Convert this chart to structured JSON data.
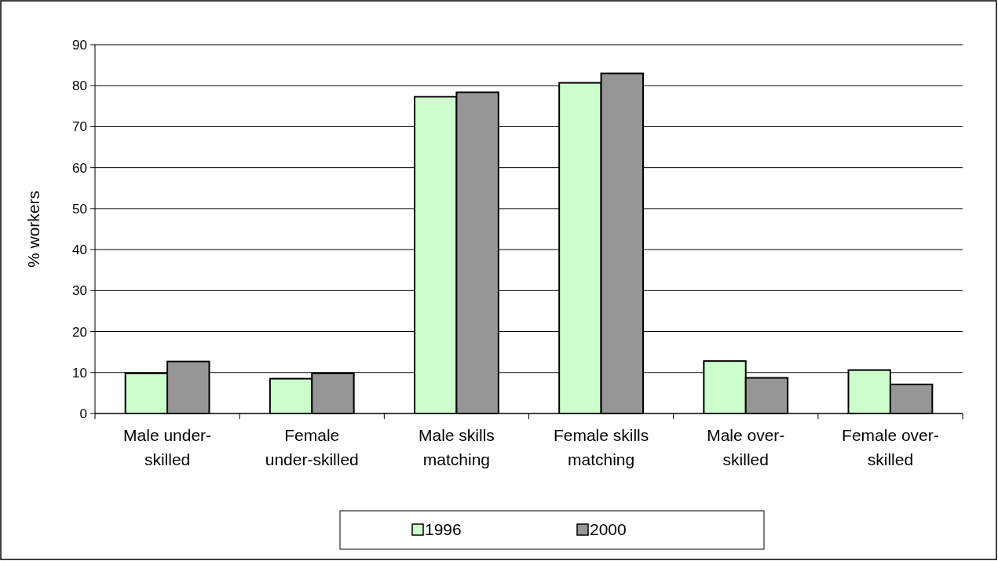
{
  "chart_data": {
    "type": "bar",
    "ylabel": "% workers",
    "categories": [
      "Male  under-\nskilled",
      "Female\nunder-skilled",
      "Male skills\nmatching",
      "Female skills\nmatching",
      "Male over-\nskilled",
      "Female over-\nskilled"
    ],
    "series": [
      {
        "name": "1996",
        "color": "#ccffcc",
        "values": [
          9.8,
          8.5,
          77.3,
          80.7,
          12.8,
          10.6
        ]
      },
      {
        "name": "2000",
        "color": "#969696",
        "values": [
          12.7,
          9.8,
          78.4,
          83.0,
          8.7,
          7.1
        ]
      }
    ],
    "ylim": [
      0,
      90
    ],
    "yticks": [
      0,
      10,
      20,
      30,
      40,
      50,
      60,
      70,
      80,
      90
    ],
    "grid": "y",
    "legend": "bottom"
  }
}
